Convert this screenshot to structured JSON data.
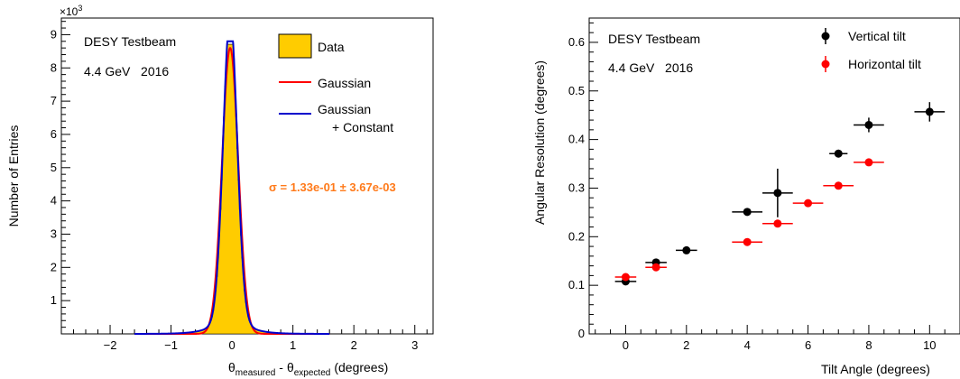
{
  "chart_data": [
    {
      "type": "histogram",
      "ylabel": "Number of Entries",
      "xlabel_parts": {
        "theta": "θ",
        "sub1": "measured",
        "dash": "-",
        "sub2": "expected",
        "unit": "(degrees)"
      },
      "y_exponent": "×10",
      "y_exponent_power": "3",
      "xlim": [
        -2.8,
        3.3
      ],
      "ylim": [
        0,
        9.5
      ],
      "xticks": [
        -2,
        -1,
        0,
        1,
        2,
        3
      ],
      "xtick_labels": [
        "−2",
        "−1",
        "0",
        "1",
        "2",
        "3"
      ],
      "yticks": [
        1,
        2,
        3,
        4,
        5,
        6,
        7,
        8,
        9
      ],
      "ytick_labels": [
        "1",
        "2",
        "3",
        "4",
        "5",
        "6",
        "7",
        "8",
        "9"
      ],
      "annotations": {
        "line1": "DESY Testbeam",
        "line2": "4.4 GeV   2016"
      },
      "sigma_text": "σ = 1.33e-01 ± 3.67e-03",
      "legend": {
        "data": "Data",
        "gaussian": "Gaussian",
        "gc_line1": "Gaussian",
        "gc_line2": "+ Constant"
      },
      "gaussian_fit": {
        "amplitude": 8.6,
        "mean": -0.03,
        "sigma": 0.133
      },
      "gaussian_constant_fit": {
        "amplitude": 8.8,
        "mean": -0.03,
        "sigma": 0.115,
        "constant": 0.02
      },
      "colors": {
        "fill": "#ffcc00",
        "gaussian": "#ff0000",
        "gaussian_constant": "#0000cc",
        "sigma_text": "#ff7a1a"
      }
    },
    {
      "type": "scatter",
      "xlabel": "Tilt Angle (degrees)",
      "ylabel": "Angular Resolution (degrees)",
      "xlim": [
        -1.2,
        11
      ],
      "ylim": [
        0,
        0.65
      ],
      "xticks": [
        0,
        2,
        4,
        6,
        8,
        10
      ],
      "xtick_labels": [
        "0",
        "2",
        "4",
        "6",
        "8",
        "10"
      ],
      "yticks": [
        0.1,
        0.2,
        0.3,
        0.4,
        0.5,
        0.6
      ],
      "ytick_labels": [
        "0.1",
        "0.2",
        "0.3",
        "0.4",
        "0.5",
        "0.6"
      ],
      "annotations": {
        "line1": "DESY Testbeam",
        "line2": "4.4 GeV   2016"
      },
      "series": [
        {
          "name": "Vertical tilt",
          "color": "#000000",
          "points": [
            {
              "x": 0,
              "y": 0.108,
              "xerr": 0.35,
              "yerr": 0.006
            },
            {
              "x": 1,
              "y": 0.147,
              "xerr": 0.35,
              "yerr": 0.005
            },
            {
              "x": 2,
              "y": 0.172,
              "xerr": 0.35,
              "yerr": 0.005
            },
            {
              "x": 4,
              "y": 0.251,
              "xerr": 0.5,
              "yerr": 0.005
            },
            {
              "x": 5,
              "y": 0.29,
              "xerr": 0.5,
              "yerr": 0.05
            },
            {
              "x": 7,
              "y": 0.371,
              "xerr": 0.3,
              "yerr": 0.008
            },
            {
              "x": 8,
              "y": 0.43,
              "xerr": 0.5,
              "yerr": 0.015
            },
            {
              "x": 10,
              "y": 0.457,
              "xerr": 0.5,
              "yerr": 0.02
            }
          ]
        },
        {
          "name": "Horizontal tilt",
          "color": "#ff0000",
          "points": [
            {
              "x": 0,
              "y": 0.117,
              "xerr": 0.35,
              "yerr": 0.005
            },
            {
              "x": 1,
              "y": 0.137,
              "xerr": 0.35,
              "yerr": 0.005
            },
            {
              "x": 4,
              "y": 0.189,
              "xerr": 0.5,
              "yerr": 0.004
            },
            {
              "x": 5,
              "y": 0.227,
              "xerr": 0.5,
              "yerr": 0.004
            },
            {
              "x": 6,
              "y": 0.269,
              "xerr": 0.5,
              "yerr": 0.004
            },
            {
              "x": 7,
              "y": 0.305,
              "xerr": 0.5,
              "yerr": 0.004
            },
            {
              "x": 8,
              "y": 0.353,
              "xerr": 0.5,
              "yerr": 0.005
            }
          ]
        }
      ]
    }
  ]
}
